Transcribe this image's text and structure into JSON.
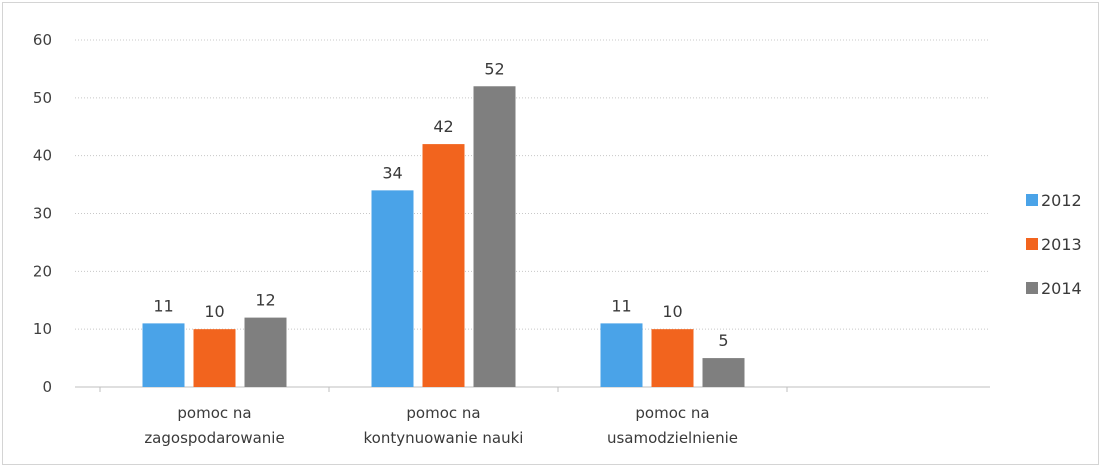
{
  "chart_data": {
    "type": "bar",
    "categories": [
      [
        "pomoc na",
        "zagospodarowanie"
      ],
      [
        "pomoc na",
        "kontynuowanie nauki"
      ],
      [
        "pomoc na",
        "usamodzielnienie"
      ]
    ],
    "series": [
      {
        "name": "2012",
        "color": "#4aa3e8",
        "values": [
          11,
          34,
          11
        ]
      },
      {
        "name": "2013",
        "color": "#f2641e",
        "values": [
          10,
          42,
          10
        ]
      },
      {
        "name": "2014",
        "color": "#7f7f7f",
        "values": [
          12,
          52,
          5
        ]
      }
    ],
    "yticks": [
      0,
      10,
      20,
      30,
      40,
      50,
      60
    ],
    "ylim": [
      0,
      60
    ],
    "grid": true,
    "grid_style": "dotted",
    "data_labels": true,
    "legend_position": "right",
    "title": "",
    "xlabel": "",
    "ylabel": ""
  }
}
